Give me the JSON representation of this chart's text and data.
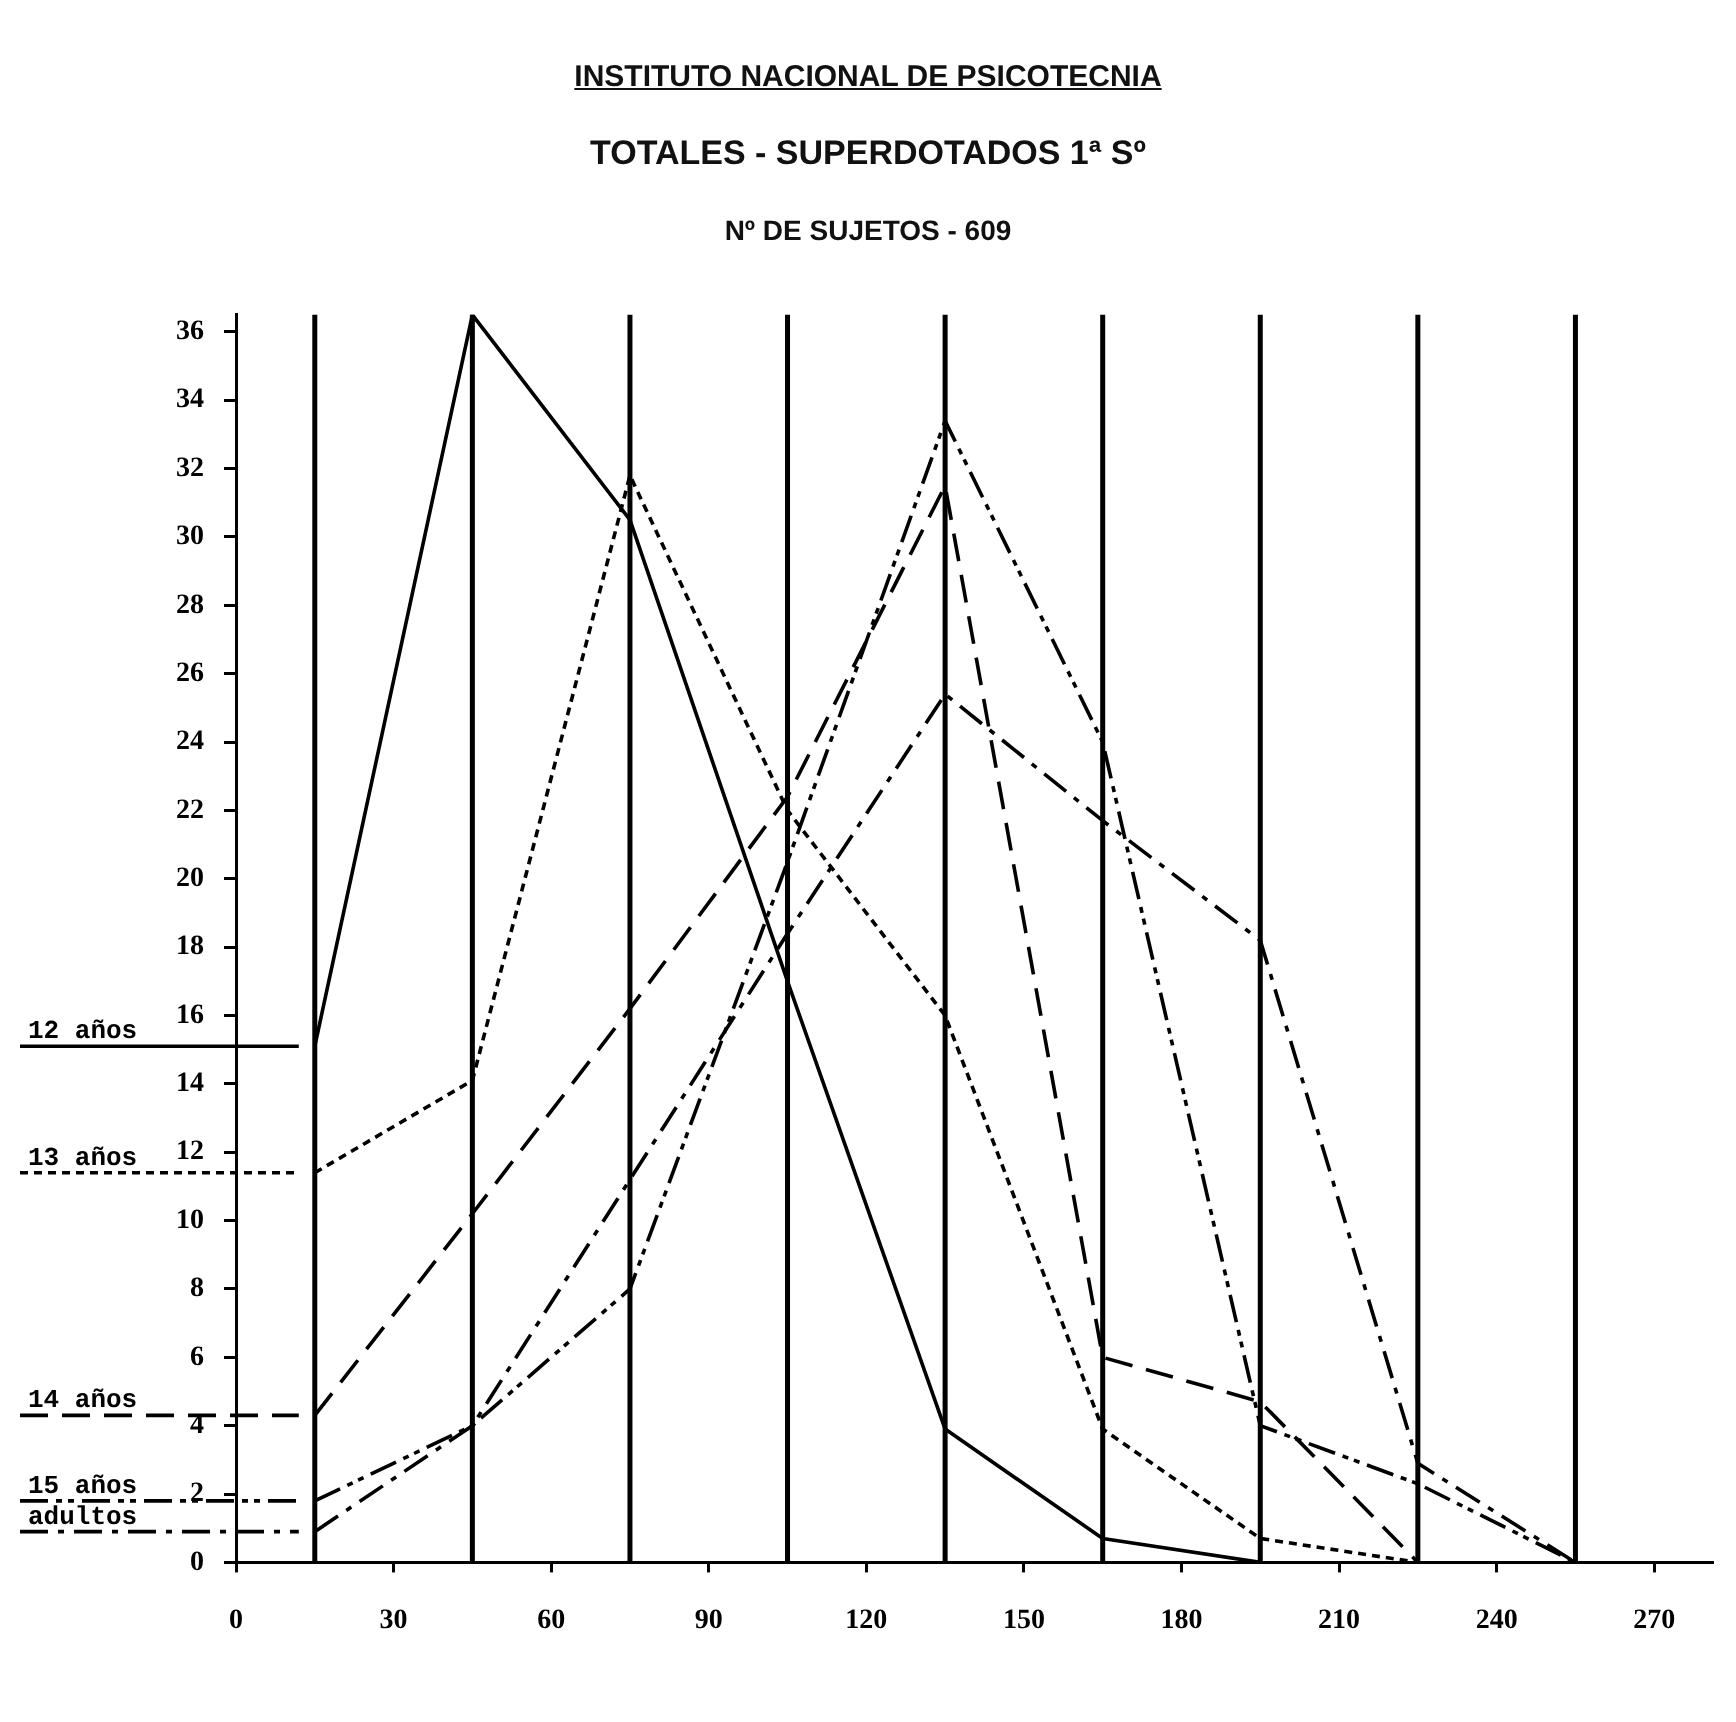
{
  "chart_data": {
    "type": "line",
    "title": "INSTITUTO NACIONAL DE PSICOTECNIA",
    "subtitle": "TOTALES - SUPERDOTADOS 1ª Sº",
    "annotations": [
      "Nº DE SUJETOS - 609"
    ],
    "x": [
      15,
      45,
      75,
      105,
      135,
      165,
      195,
      225,
      255
    ],
    "series": [
      {
        "name": "12 años",
        "color": "#000000",
        "line_style": "solid",
        "values": [
          15.1,
          36.5,
          30.5,
          17.0,
          3.9,
          0.7,
          0,
          null,
          null
        ]
      },
      {
        "name": "13 años",
        "color": "#000000",
        "line_style": "dotted",
        "values": [
          11.4,
          14.1,
          31.8,
          22.0,
          16.0,
          3.9,
          0.7,
          0,
          null
        ]
      },
      {
        "name": "14 años",
        "color": "#000000",
        "line_style": "dashed",
        "values": [
          4.3,
          10.2,
          16.2,
          22.4,
          31.5,
          6.0,
          4.7,
          0,
          null
        ]
      },
      {
        "name": "15 años",
        "color": "#000000",
        "line_style": "dashdotdot",
        "values": [
          1.8,
          4.0,
          8.0,
          20.5,
          33.4,
          24.0,
          4.0,
          2.3,
          0
        ]
      },
      {
        "name": "adultos",
        "color": "#000000",
        "line_style": "dashdot",
        "values": [
          0.9,
          4.0,
          11.2,
          18.4,
          25.4,
          21.7,
          18.2,
          2.9,
          0
        ]
      }
    ],
    "xlim": [
      0,
      281
    ],
    "xticks": [
      0,
      30,
      60,
      90,
      120,
      150,
      180,
      210,
      240,
      270
    ],
    "ylim": [
      0,
      36.5
    ],
    "yticks": [
      0,
      2,
      4,
      6,
      8,
      10,
      12,
      14,
      16,
      18,
      20,
      22,
      24,
      26,
      28,
      30,
      32,
      34,
      36
    ],
    "ref_lines": [
      {
        "axis": "x",
        "value": 15,
        "color": "#000000"
      },
      {
        "axis": "x",
        "value": 45,
        "color": "#000000"
      },
      {
        "axis": "x",
        "value": 75,
        "color": "#000000"
      },
      {
        "axis": "x",
        "value": 105,
        "color": "#000000"
      },
      {
        "axis": "x",
        "value": 135,
        "color": "#000000"
      },
      {
        "axis": "x",
        "value": 165,
        "color": "#000000"
      },
      {
        "axis": "x",
        "value": 195,
        "color": "#000000"
      },
      {
        "axis": "x",
        "value": 225,
        "color": "#000000"
      },
      {
        "axis": "x",
        "value": 255,
        "color": "#000000"
      }
    ],
    "grid": false,
    "legend": false,
    "marker": "none"
  }
}
